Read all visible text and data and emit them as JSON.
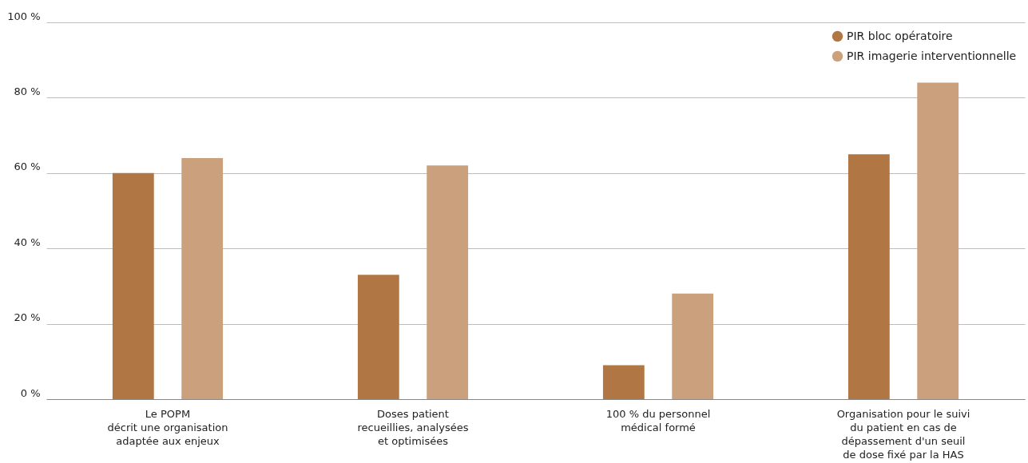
{
  "chart_data": {
    "type": "bar",
    "categories": [
      "Le POPM\ndécrit une organisation\nadaptée aux enjeux",
      "Doses patient\nrecueillies, analysées\net optimisées",
      "100 % du personnel\nmédical formé",
      "Organisation pour le suivi\ndu patient en cas de\ndépassement d'un seuil\nde dose fixé par la HAS"
    ],
    "series": [
      {
        "name": "PIR bloc opératoire",
        "color": "#b07644",
        "values": [
          60,
          33,
          9,
          65
        ]
      },
      {
        "name": "PIR imagerie interventionnelle",
        "color": "#cba17d",
        "values": [
          64,
          62,
          28,
          84
        ]
      }
    ],
    "ylim": [
      0,
      100
    ],
    "yticks": [
      {
        "value": 0,
        "label": "0 %"
      },
      {
        "value": 20,
        "label": "20 %"
      },
      {
        "value": 40,
        "label": "40 %"
      },
      {
        "value": 60,
        "label": "60 %"
      },
      {
        "value": 80,
        "label": "80 %"
      },
      {
        "value": 100,
        "label": "100 %"
      }
    ],
    "grid": "y",
    "legend": "top right"
  }
}
